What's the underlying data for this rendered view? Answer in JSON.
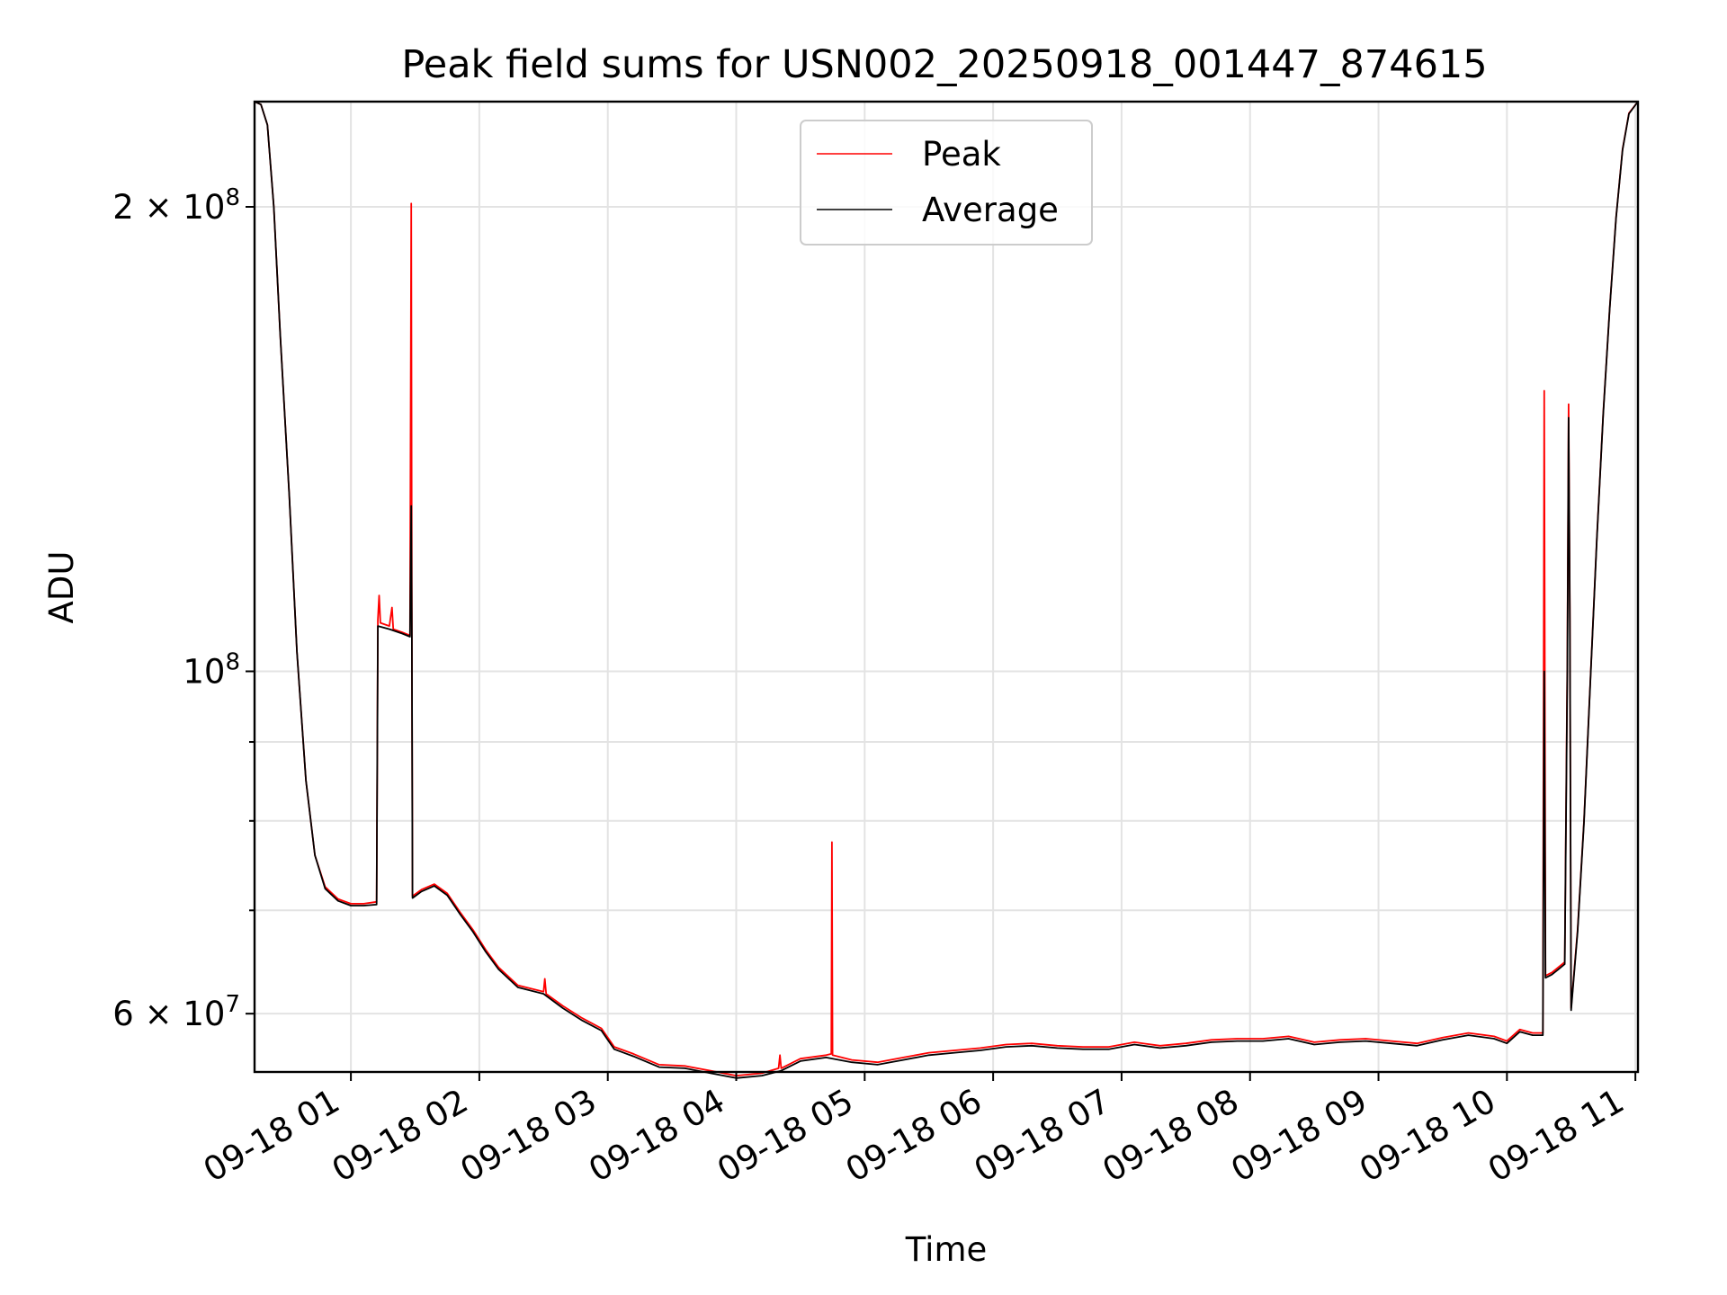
{
  "chart_data": {
    "type": "line",
    "title": "Peak field sums for USN002_20250918_001447_874615",
    "xlabel": "Time",
    "ylabel": "ADU",
    "yscale": "log",
    "xlim": [
      0.25,
      11.02
    ],
    "ylim": [
      55000000,
      234000000
    ],
    "grid": true,
    "legend_position": "top-center",
    "x_ticks": [
      {
        "value": 1,
        "label": "09-18 01"
      },
      {
        "value": 2,
        "label": "09-18 02"
      },
      {
        "value": 3,
        "label": "09-18 03"
      },
      {
        "value": 4,
        "label": "09-18 04"
      },
      {
        "value": 5,
        "label": "09-18 05"
      },
      {
        "value": 6,
        "label": "09-18 06"
      },
      {
        "value": 7,
        "label": "09-18 07"
      },
      {
        "value": 8,
        "label": "09-18 08"
      },
      {
        "value": 9,
        "label": "09-18 09"
      },
      {
        "value": 10,
        "label": "09-18 10"
      },
      {
        "value": 11,
        "label": "09-18 11"
      }
    ],
    "y_ticks": [
      {
        "value": 60000000,
        "mantissa": "6",
        "exponent": "7"
      },
      {
        "value": 100000000,
        "mantissa": "",
        "exponent": "8"
      },
      {
        "value": 200000000,
        "mantissa": "2",
        "exponent": "8"
      }
    ],
    "y_minor_grid": [
      70000000,
      80000000,
      90000000
    ],
    "tick_base": "10",
    "tick_times": "×",
    "series": [
      {
        "name": "Peak",
        "color": "#ff0000",
        "points": [
          [
            0.25,
            234000000
          ],
          [
            0.3,
            233000000
          ],
          [
            0.35,
            226000000
          ],
          [
            0.4,
            200000000
          ],
          [
            0.45,
            165000000
          ],
          [
            0.52,
            130000000
          ],
          [
            0.58,
            103000000
          ],
          [
            0.65,
            85000000
          ],
          [
            0.72,
            76000000
          ],
          [
            0.8,
            72500000
          ],
          [
            0.9,
            71200000
          ],
          [
            1.0,
            70700000
          ],
          [
            1.1,
            70700000
          ],
          [
            1.2,
            70900000
          ],
          [
            1.21,
            108000000
          ],
          [
            1.22,
            112000000
          ],
          [
            1.23,
            107500000
          ],
          [
            1.3,
            107000000
          ],
          [
            1.32,
            110000000
          ],
          [
            1.33,
            106500000
          ],
          [
            1.4,
            106000000
          ],
          [
            1.46,
            105500000
          ],
          [
            1.47,
            201000000
          ],
          [
            1.475,
            106000000
          ],
          [
            1.48,
            71500000
          ],
          [
            1.55,
            72200000
          ],
          [
            1.65,
            72800000
          ],
          [
            1.75,
            71800000
          ],
          [
            1.85,
            69800000
          ],
          [
            1.95,
            68000000
          ],
          [
            2.05,
            66000000
          ],
          [
            2.15,
            64300000
          ],
          [
            2.3,
            62600000
          ],
          [
            2.5,
            62000000
          ],
          [
            2.51,
            63200000
          ],
          [
            2.52,
            61800000
          ],
          [
            2.65,
            60700000
          ],
          [
            2.8,
            59600000
          ],
          [
            2.95,
            58700000
          ],
          [
            3.05,
            57100000
          ],
          [
            3.2,
            56500000
          ],
          [
            3.4,
            55600000
          ],
          [
            3.6,
            55500000
          ],
          [
            3.8,
            55100000
          ],
          [
            4.0,
            54700000
          ],
          [
            4.2,
            54900000
          ],
          [
            4.33,
            55300000
          ],
          [
            4.34,
            56400000
          ],
          [
            4.35,
            55300000
          ],
          [
            4.5,
            56100000
          ],
          [
            4.7,
            56400000
          ],
          [
            4.74,
            56500000
          ],
          [
            4.745,
            77500000
          ],
          [
            4.75,
            56400000
          ],
          [
            4.9,
            56000000
          ],
          [
            5.1,
            55800000
          ],
          [
            5.3,
            56200000
          ],
          [
            5.5,
            56600000
          ],
          [
            5.7,
            56800000
          ],
          [
            5.9,
            57000000
          ],
          [
            6.1,
            57300000
          ],
          [
            6.3,
            57400000
          ],
          [
            6.5,
            57200000
          ],
          [
            6.7,
            57100000
          ],
          [
            6.9,
            57100000
          ],
          [
            7.1,
            57500000
          ],
          [
            7.3,
            57200000
          ],
          [
            7.5,
            57400000
          ],
          [
            7.7,
            57700000
          ],
          [
            7.9,
            57800000
          ],
          [
            8.1,
            57800000
          ],
          [
            8.3,
            58000000
          ],
          [
            8.5,
            57500000
          ],
          [
            8.7,
            57700000
          ],
          [
            8.9,
            57800000
          ],
          [
            9.1,
            57600000
          ],
          [
            9.3,
            57400000
          ],
          [
            9.5,
            57900000
          ],
          [
            9.7,
            58300000
          ],
          [
            9.9,
            58000000
          ],
          [
            10.0,
            57600000
          ],
          [
            10.1,
            58600000
          ],
          [
            10.2,
            58300000
          ],
          [
            10.28,
            58300000
          ],
          [
            10.29,
            152000000
          ],
          [
            10.3,
            63500000
          ],
          [
            10.35,
            63800000
          ],
          [
            10.4,
            64300000
          ],
          [
            10.45,
            64800000
          ],
          [
            10.47,
            102000000
          ],
          [
            10.48,
            149000000
          ],
          [
            10.49,
            110000000
          ],
          [
            10.5,
            60500000
          ],
          [
            10.55,
            68000000
          ],
          [
            10.6,
            80000000
          ],
          [
            10.65,
            99000000
          ],
          [
            10.7,
            122000000
          ],
          [
            10.75,
            147000000
          ],
          [
            10.8,
            172000000
          ],
          [
            10.85,
            197000000
          ],
          [
            10.9,
            218000000
          ],
          [
            10.95,
            230000000
          ],
          [
            11.02,
            234000000
          ]
        ]
      },
      {
        "name": "Average",
        "color": "#000000",
        "points": [
          [
            0.25,
            234000000
          ],
          [
            0.3,
            233000000
          ],
          [
            0.35,
            226000000
          ],
          [
            0.4,
            200000000
          ],
          [
            0.45,
            165000000
          ],
          [
            0.52,
            130000000
          ],
          [
            0.58,
            103000000
          ],
          [
            0.65,
            85000000
          ],
          [
            0.72,
            76000000
          ],
          [
            0.8,
            72300000
          ],
          [
            0.9,
            71000000
          ],
          [
            1.0,
            70500000
          ],
          [
            1.1,
            70500000
          ],
          [
            1.2,
            70600000
          ],
          [
            1.21,
            107000000
          ],
          [
            1.3,
            106500000
          ],
          [
            1.4,
            105800000
          ],
          [
            1.46,
            105300000
          ],
          [
            1.47,
            128000000
          ],
          [
            1.475,
            105500000
          ],
          [
            1.48,
            71300000
          ],
          [
            1.55,
            72000000
          ],
          [
            1.65,
            72600000
          ],
          [
            1.75,
            71600000
          ],
          [
            1.85,
            69600000
          ],
          [
            1.95,
            67800000
          ],
          [
            2.05,
            65800000
          ],
          [
            2.15,
            64100000
          ],
          [
            2.3,
            62400000
          ],
          [
            2.5,
            61800000
          ],
          [
            2.65,
            60500000
          ],
          [
            2.8,
            59400000
          ],
          [
            2.95,
            58500000
          ],
          [
            3.05,
            56900000
          ],
          [
            3.2,
            56300000
          ],
          [
            3.4,
            55400000
          ],
          [
            3.6,
            55300000
          ],
          [
            3.8,
            54900000
          ],
          [
            4.0,
            54500000
          ],
          [
            4.2,
            54700000
          ],
          [
            4.35,
            55100000
          ],
          [
            4.5,
            55900000
          ],
          [
            4.7,
            56200000
          ],
          [
            4.9,
            55800000
          ],
          [
            5.1,
            55600000
          ],
          [
            5.3,
            56000000
          ],
          [
            5.5,
            56400000
          ],
          [
            5.7,
            56600000
          ],
          [
            5.9,
            56800000
          ],
          [
            6.1,
            57100000
          ],
          [
            6.3,
            57200000
          ],
          [
            6.5,
            57000000
          ],
          [
            6.7,
            56900000
          ],
          [
            6.9,
            56900000
          ],
          [
            7.1,
            57300000
          ],
          [
            7.3,
            57000000
          ],
          [
            7.5,
            57200000
          ],
          [
            7.7,
            57500000
          ],
          [
            7.9,
            57600000
          ],
          [
            8.1,
            57600000
          ],
          [
            8.3,
            57800000
          ],
          [
            8.5,
            57300000
          ],
          [
            8.7,
            57500000
          ],
          [
            8.9,
            57600000
          ],
          [
            9.1,
            57400000
          ],
          [
            9.3,
            57200000
          ],
          [
            9.5,
            57700000
          ],
          [
            9.7,
            58100000
          ],
          [
            9.9,
            57800000
          ],
          [
            10.0,
            57400000
          ],
          [
            10.1,
            58400000
          ],
          [
            10.2,
            58100000
          ],
          [
            10.28,
            58100000
          ],
          [
            10.29,
            100000000
          ],
          [
            10.3,
            63300000
          ],
          [
            10.35,
            63600000
          ],
          [
            10.4,
            64100000
          ],
          [
            10.45,
            64600000
          ],
          [
            10.47,
            100000000
          ],
          [
            10.48,
            146000000
          ],
          [
            10.49,
            108000000
          ],
          [
            10.5,
            60300000
          ],
          [
            10.55,
            67800000
          ],
          [
            10.6,
            79800000
          ],
          [
            10.65,
            98800000
          ],
          [
            10.7,
            121800000
          ],
          [
            10.75,
            146800000
          ],
          [
            10.8,
            171800000
          ],
          [
            10.85,
            196800000
          ],
          [
            10.9,
            217800000
          ],
          [
            10.95,
            229800000
          ],
          [
            11.02,
            234000000
          ]
        ]
      }
    ]
  }
}
